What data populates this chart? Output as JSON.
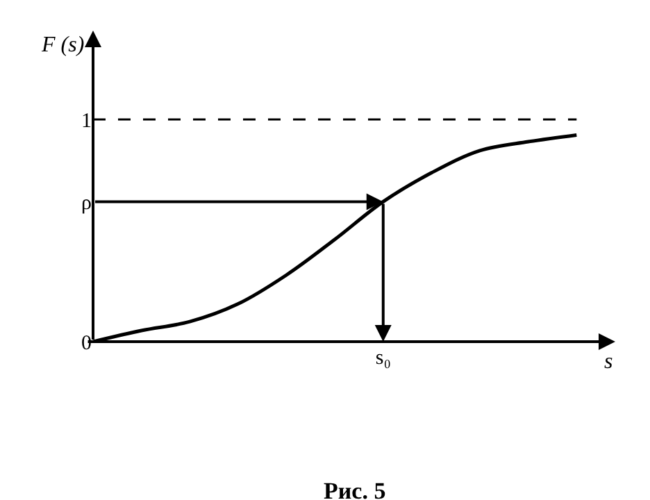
{
  "chart_data": {
    "type": "line",
    "xlabel": "s",
    "ylabel": "F (s)",
    "categories": [
      null,
      null,
      null,
      null,
      null,
      null,
      "s₀",
      null,
      null,
      null,
      null
    ],
    "series": [
      {
        "color": "#000000",
        "values": [
          0,
          0.05,
          0.09,
          0.17,
          0.3,
          0.46,
          0.63,
          0.76,
          0.86,
          0.9,
          0.93
        ]
      }
    ],
    "ylim": [
      0,
      1.4
    ],
    "yticks": [
      0,
      {
        "value": 0.63,
        "label": "ρ"
      },
      1
    ],
    "ref_lines": [
      {
        "axis": "y",
        "value": 1,
        "line_style": "dashed",
        "color": "#000000"
      }
    ],
    "annotations": [
      "Рис. 5"
    ],
    "legend": false,
    "marker": "none",
    "line_style": "solid"
  }
}
